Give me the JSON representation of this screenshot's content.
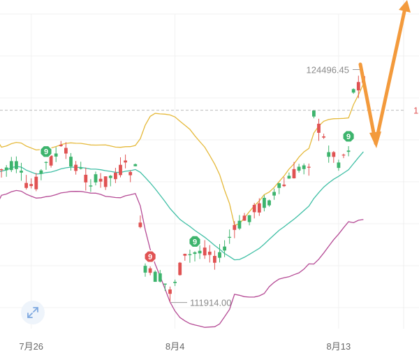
{
  "chart_data": {
    "type": "candlestick",
    "xlabel": "",
    "ylabel": "",
    "x_ticks": [
      "7月26",
      "8月4",
      "8月13"
    ],
    "ylim": [
      110500,
      127500
    ],
    "up_color": "#3db46d",
    "down_color": "#e05252",
    "current_price_label": "1",
    "reference_line_value": 122300,
    "annotations": {
      "high": {
        "label": "124496.45",
        "value": 124496.45
      },
      "low": {
        "label": "111914.00",
        "value": 111914.0
      }
    },
    "signal_badges": [
      {
        "label": "9",
        "color": "#3db46d",
        "candle": 10
      },
      {
        "label": "9",
        "color": "#3db46d",
        "candle": 40
      },
      {
        "label": "9",
        "color": "#e05252",
        "candle": 31
      },
      {
        "label": "9",
        "color": "#3db46d",
        "candle": 71
      }
    ],
    "bollinger": {
      "upper_color": "#e5b93a",
      "middle_color": "#3fbfa5",
      "lower_color": "#b54a95"
    },
    "forecast_arrows_color": "#f39a3c"
  }
}
